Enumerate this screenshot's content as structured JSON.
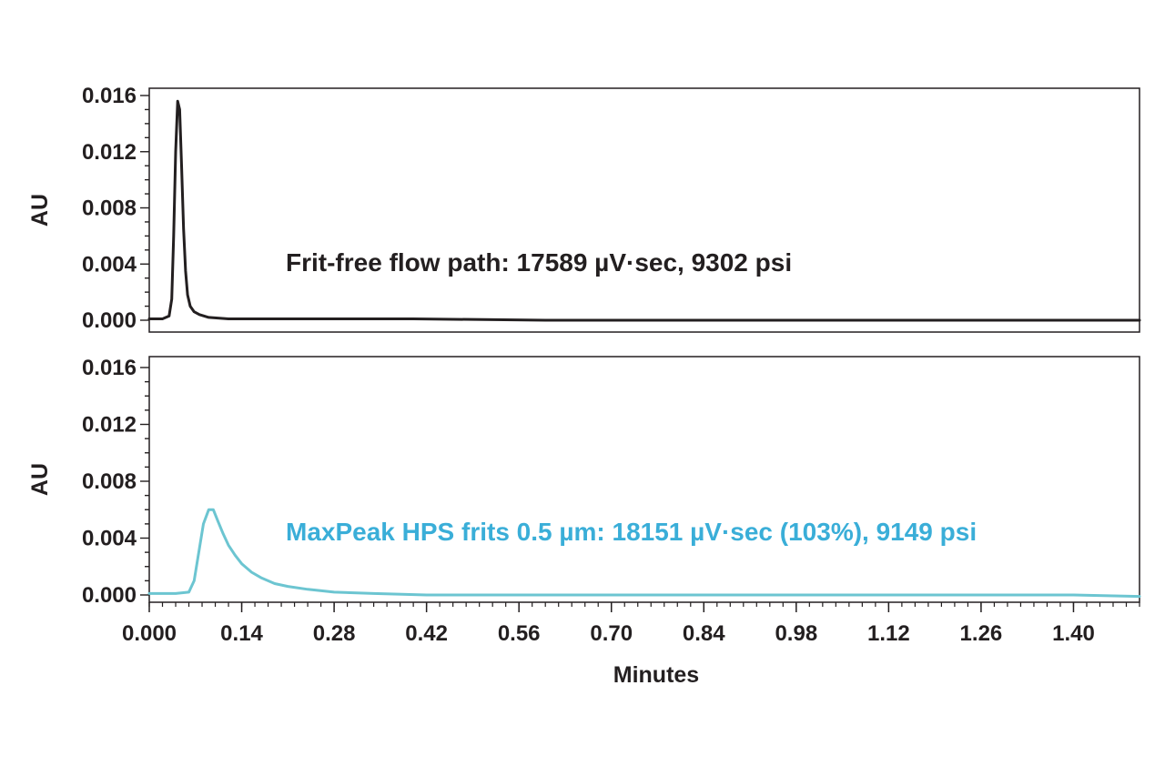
{
  "chart_data": [
    {
      "type": "line",
      "ylabel": "AU",
      "ylim": [
        0.0,
        0.017
      ],
      "xlim": [
        0.0,
        1.5
      ],
      "y_ticks": [
        "0.000",
        "0.004",
        "0.008",
        "0.012",
        "0.016"
      ],
      "y_tick_values": [
        0.0,
        0.004,
        0.008,
        0.012,
        0.016
      ],
      "grid": false,
      "annotation": "Frit-free flow path: 17589 µV·sec, 9302 psi",
      "color": "#231f20",
      "series": [
        {
          "x": [
            0.0,
            0.02,
            0.03,
            0.034,
            0.037,
            0.04,
            0.043,
            0.046,
            0.049,
            0.052,
            0.055,
            0.058,
            0.062,
            0.068,
            0.076,
            0.09,
            0.12,
            0.2,
            0.4,
            0.6,
            0.8,
            1.0,
            1.2,
            1.4,
            1.5
          ],
          "y": [
            0.0001,
            0.0001,
            0.0003,
            0.0015,
            0.006,
            0.012,
            0.0156,
            0.015,
            0.011,
            0.0065,
            0.0035,
            0.0018,
            0.001,
            0.0006,
            0.0004,
            0.0002,
            0.0001,
            0.0001,
            0.0001,
            0.0,
            0.0,
            0.0,
            0.0,
            0.0,
            0.0
          ]
        }
      ]
    },
    {
      "type": "line",
      "xlabel": "Minutes",
      "ylabel": "AU",
      "ylim": [
        -0.0005,
        0.0165
      ],
      "xlim": [
        0.0,
        1.5
      ],
      "x_ticks": [
        "0.000",
        "0.14",
        "0.28",
        "0.42",
        "0.56",
        "0.70",
        "0.84",
        "0.98",
        "1.12",
        "1.26",
        "1.40"
      ],
      "x_tick_values": [
        0.0,
        0.14,
        0.28,
        0.42,
        0.56,
        0.7,
        0.84,
        0.98,
        1.12,
        1.26,
        1.4
      ],
      "y_ticks": [
        "0.000",
        "0.004",
        "0.008",
        "0.012",
        "0.016"
      ],
      "y_tick_values": [
        0.0,
        0.004,
        0.008,
        0.012,
        0.016
      ],
      "grid": false,
      "annotation": "MaxPeak HPS frits 0.5 µm: 18151 µV·sec (103%), 9149 psi",
      "color": "#6cc5d1",
      "annotation_color": "#3aaed8",
      "series": [
        {
          "x": [
            0.0,
            0.04,
            0.06,
            0.068,
            0.075,
            0.082,
            0.09,
            0.097,
            0.104,
            0.112,
            0.12,
            0.13,
            0.14,
            0.155,
            0.17,
            0.19,
            0.21,
            0.24,
            0.28,
            0.34,
            0.42,
            0.6,
            0.8,
            1.0,
            1.2,
            1.4,
            1.5
          ],
          "y": [
            0.0001,
            0.0001,
            0.0002,
            0.001,
            0.003,
            0.005,
            0.006,
            0.006,
            0.0052,
            0.0043,
            0.0035,
            0.0028,
            0.0022,
            0.0016,
            0.0012,
            0.0008,
            0.0006,
            0.0004,
            0.0002,
            0.0001,
            0.0,
            0.0,
            0.0,
            0.0,
            0.0,
            0.0,
            -0.0001
          ]
        }
      ]
    }
  ]
}
